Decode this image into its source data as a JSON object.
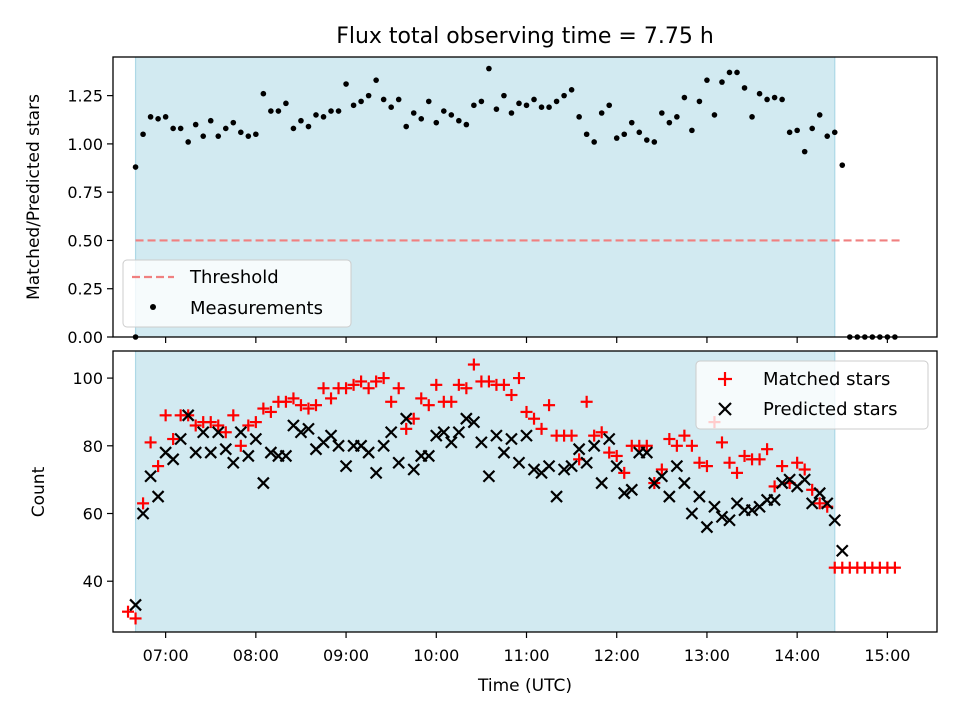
{
  "chart_data": [
    {
      "type": "scatter",
      "title": "Flux total observing time = 7.75 h",
      "xlabel": "",
      "ylabel": "Matched/Predicted stars",
      "xlim": [
        "06:25",
        "15:33"
      ],
      "ylim": [
        0,
        1.45
      ],
      "y_ticks": [
        0.0,
        0.25,
        0.5,
        0.75,
        1.0,
        1.25
      ],
      "y_tick_labels": [
        "0.00",
        "0.25",
        "0.50",
        "0.75",
        "1.00",
        "1.25"
      ],
      "highlight_span": [
        "06:40",
        "14:25"
      ],
      "highlight_color": "#add8e6",
      "legend_position": "lower-left",
      "legend": [
        {
          "label": "Threshold",
          "marker": "dashed-line",
          "color": "#f08080"
        },
        {
          "label": "Measurements",
          "marker": "dot",
          "color": "#000000"
        }
      ],
      "threshold": {
        "y": 0.5,
        "x_range": [
          "06:40",
          "15:10"
        ]
      },
      "series": [
        {
          "name": "Measurements",
          "color": "#000000",
          "x": [
            "06:40",
            "06:45",
            "06:50",
            "06:55",
            "07:00",
            "07:05",
            "07:10",
            "07:15",
            "07:20",
            "07:25",
            "07:30",
            "07:35",
            "07:40",
            "07:45",
            "07:50",
            "07:55",
            "08:00",
            "08:05",
            "08:10",
            "08:15",
            "08:20",
            "08:25",
            "08:30",
            "08:35",
            "08:40",
            "08:45",
            "08:50",
            "08:55",
            "09:00",
            "09:05",
            "09:10",
            "09:15",
            "09:20",
            "09:25",
            "09:30",
            "09:35",
            "09:40",
            "09:45",
            "09:50",
            "09:55",
            "10:00",
            "10:05",
            "10:10",
            "10:15",
            "10:20",
            "10:25",
            "10:30",
            "10:35",
            "10:40",
            "10:45",
            "10:50",
            "10:55",
            "11:00",
            "11:05",
            "11:10",
            "11:15",
            "11:20",
            "11:25",
            "11:30",
            "11:35",
            "11:40",
            "11:45",
            "11:50",
            "11:55",
            "12:00",
            "12:05",
            "12:10",
            "12:15",
            "12:20",
            "12:25",
            "12:30",
            "12:35",
            "12:40",
            "12:45",
            "12:50",
            "12:55",
            "13:00",
            "13:05",
            "13:10",
            "13:15",
            "13:20",
            "13:25",
            "13:30",
            "13:35",
            "13:40",
            "13:45",
            "13:50",
            "13:55",
            "14:00",
            "14:05",
            "14:10",
            "14:15",
            "14:20",
            "14:25",
            "14:30",
            "14:35",
            "14:40",
            "14:45",
            "14:50",
            "14:55",
            "15:00",
            "15:05"
          ],
          "y": [
            0.88,
            1.05,
            1.14,
            1.13,
            1.14,
            1.08,
            1.08,
            1.01,
            1.1,
            1.04,
            1.12,
            1.04,
            1.08,
            1.11,
            1.06,
            1.04,
            1.05,
            1.26,
            1.17,
            1.17,
            1.21,
            1.08,
            1.12,
            1.09,
            1.15,
            1.14,
            1.17,
            1.17,
            1.31,
            1.2,
            1.22,
            1.25,
            1.33,
            1.23,
            1.19,
            1.23,
            1.09,
            1.16,
            1.13,
            1.22,
            1.11,
            1.17,
            1.15,
            1.12,
            1.1,
            1.2,
            1.22,
            1.39,
            1.18,
            1.25,
            1.16,
            1.21,
            1.2,
            1.23,
            1.19,
            1.19,
            1.22,
            1.25,
            1.28,
            1.14,
            1.05,
            1.01,
            1.16,
            1.2,
            1.03,
            1.05,
            1.11,
            1.06,
            1.02,
            1.01,
            1.16,
            1.11,
            1.14,
            1.24,
            1.07,
            1.22,
            1.33,
            1.15,
            1.32,
            1.37,
            1.37,
            1.29,
            1.14,
            1.26,
            1.23,
            1.24,
            1.23,
            1.06,
            1.07,
            0.96,
            1.08,
            1.15,
            1.04,
            1.06,
            0.89,
            0.0,
            0.0,
            0.0,
            0.0,
            0.0,
            0.0,
            0.0
          ]
        }
      ],
      "extra_points": [
        {
          "x": "06:40",
          "y": 0.0
        }
      ]
    },
    {
      "type": "scatter",
      "title": "",
      "xlabel": "Time (UTC)",
      "ylabel": "Count",
      "xlim": [
        "06:25",
        "15:33"
      ],
      "ylim": [
        25,
        108
      ],
      "y_ticks": [
        40,
        60,
        80,
        100
      ],
      "y_tick_labels": [
        "40",
        "60",
        "80",
        "100"
      ],
      "x_ticks": [
        "07:00",
        "08:00",
        "09:00",
        "10:00",
        "11:00",
        "12:00",
        "13:00",
        "14:00",
        "15:00"
      ],
      "highlight_span": [
        "06:40",
        "14:25"
      ],
      "highlight_color": "#add8e6",
      "legend_position": "top-right",
      "legend": [
        {
          "label": "Matched stars",
          "marker": "plus",
          "color": "#ff0000"
        },
        {
          "label": "Predicted stars",
          "marker": "x",
          "color": "#000000"
        }
      ],
      "series": [
        {
          "name": "Matched stars",
          "marker": "plus",
          "color": "#ff0000",
          "x": [
            "06:35",
            "06:40",
            "06:45",
            "06:50",
            "06:55",
            "07:00",
            "07:05",
            "07:10",
            "07:15",
            "07:20",
            "07:25",
            "07:30",
            "07:35",
            "07:40",
            "07:45",
            "07:50",
            "07:55",
            "08:00",
            "08:05",
            "08:10",
            "08:15",
            "08:20",
            "08:25",
            "08:30",
            "08:35",
            "08:40",
            "08:45",
            "08:50",
            "08:55",
            "09:00",
            "09:05",
            "09:10",
            "09:15",
            "09:20",
            "09:25",
            "09:30",
            "09:35",
            "09:40",
            "09:45",
            "09:50",
            "09:55",
            "10:00",
            "10:05",
            "10:10",
            "10:15",
            "10:20",
            "10:25",
            "10:30",
            "10:35",
            "10:40",
            "10:45",
            "10:50",
            "10:55",
            "11:00",
            "11:05",
            "11:10",
            "11:15",
            "11:20",
            "11:25",
            "11:30",
            "11:35",
            "11:40",
            "11:45",
            "11:50",
            "11:55",
            "12:00",
            "12:05",
            "12:10",
            "12:15",
            "12:20",
            "12:25",
            "12:30",
            "12:35",
            "12:40",
            "12:45",
            "12:50",
            "12:55",
            "13:00",
            "13:05",
            "13:10",
            "13:15",
            "13:20",
            "13:25",
            "13:30",
            "13:35",
            "13:40",
            "13:45",
            "13:50",
            "13:55",
            "14:00",
            "14:05",
            "14:10",
            "14:15",
            "14:20",
            "14:25",
            "14:30",
            "14:35",
            "14:40",
            "14:45",
            "14:50",
            "14:55",
            "15:00",
            "15:05"
          ],
          "y": [
            31,
            29,
            63,
            81,
            74,
            89,
            82,
            89,
            89,
            86,
            87,
            87,
            86,
            84,
            89,
            80,
            86,
            87,
            91,
            90,
            93,
            93,
            94,
            92,
            91,
            92,
            97,
            94,
            97,
            97,
            98,
            99,
            97,
            99,
            100,
            93,
            97,
            85,
            88,
            94,
            92,
            98,
            93,
            93,
            98,
            97,
            104,
            99,
            99,
            98,
            98,
            95,
            100,
            90,
            88,
            85,
            92,
            83,
            83,
            83,
            76,
            93,
            83,
            84,
            78,
            77,
            72,
            80,
            80,
            80,
            69,
            73,
            82,
            80,
            83,
            80,
            75,
            74,
            87,
            81,
            75,
            72,
            77,
            76,
            76,
            79,
            68,
            74,
            69,
            75,
            73,
            67,
            63,
            62,
            44,
            44,
            44,
            44,
            44,
            44,
            44,
            44,
            44
          ]
        },
        {
          "name": "Predicted stars",
          "marker": "x",
          "color": "#000000",
          "x": [
            "06:40",
            "06:45",
            "06:50",
            "06:55",
            "07:00",
            "07:05",
            "07:10",
            "07:15",
            "07:20",
            "07:25",
            "07:30",
            "07:35",
            "07:40",
            "07:45",
            "07:50",
            "07:55",
            "08:00",
            "08:05",
            "08:10",
            "08:15",
            "08:20",
            "08:25",
            "08:30",
            "08:35",
            "08:40",
            "08:45",
            "08:50",
            "08:55",
            "09:00",
            "09:05",
            "09:10",
            "09:15",
            "09:20",
            "09:25",
            "09:30",
            "09:35",
            "09:40",
            "09:45",
            "09:50",
            "09:55",
            "10:00",
            "10:05",
            "10:10",
            "10:15",
            "10:20",
            "10:25",
            "10:30",
            "10:35",
            "10:40",
            "10:45",
            "10:50",
            "10:55",
            "11:00",
            "11:05",
            "11:10",
            "11:15",
            "11:20",
            "11:25",
            "11:30",
            "11:35",
            "11:40",
            "11:45",
            "11:50",
            "11:55",
            "12:00",
            "12:05",
            "12:10",
            "12:15",
            "12:20",
            "12:25",
            "12:30",
            "12:35",
            "12:40",
            "12:45",
            "12:50",
            "12:55",
            "13:00",
            "13:05",
            "13:10",
            "13:15",
            "13:20",
            "13:25",
            "13:30",
            "13:35",
            "13:40",
            "13:45",
            "13:50",
            "13:55",
            "14:00",
            "14:05",
            "14:10",
            "14:15",
            "14:20",
            "14:25",
            "14:30"
          ],
          "y": [
            33,
            60,
            71,
            65,
            78,
            76,
            82,
            89,
            78,
            84,
            78,
            84,
            79,
            75,
            84,
            77,
            82,
            69,
            78,
            77,
            77,
            86,
            84,
            85,
            79,
            81,
            83,
            80,
            74,
            80,
            80,
            78,
            72,
            80,
            84,
            75,
            88,
            73,
            77,
            77,
            83,
            84,
            81,
            84,
            88,
            87,
            81,
            71,
            83,
            78,
            82,
            75,
            83,
            73,
            72,
            74,
            65,
            73,
            74,
            79,
            75,
            80,
            69,
            82,
            74,
            66,
            67,
            78,
            78,
            69,
            71,
            65,
            74,
            69,
            60,
            65,
            56,
            62,
            59,
            58,
            63,
            61,
            61,
            62,
            64,
            64,
            69,
            70,
            68,
            70,
            63,
            66,
            63,
            58,
            49
          ]
        }
      ]
    }
  ]
}
